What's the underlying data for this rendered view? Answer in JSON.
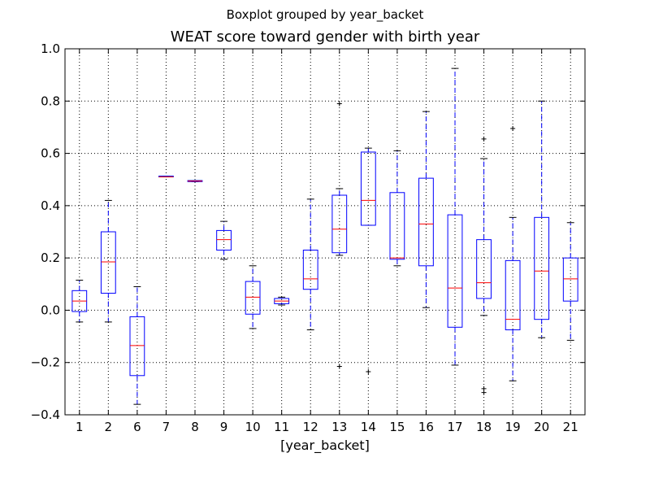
{
  "figure": {
    "suptitle": "Boxplot grouped by year_backet"
  },
  "chart_data": {
    "type": "boxplot",
    "title": "WEAT score toward gender with birth year",
    "xlabel": "[year_backet]",
    "ylabel": "",
    "ylim": [
      -0.4,
      1.0
    ],
    "yticks": [
      -0.4,
      -0.2,
      0.0,
      0.2,
      0.4,
      0.6,
      0.8,
      1.0
    ],
    "ytick_labels": [
      "−0.4",
      "−0.2",
      "0.0",
      "0.2",
      "0.4",
      "0.6",
      "0.8",
      "1.0"
    ],
    "grid": true,
    "categories": [
      "1",
      "2",
      "6",
      "7",
      "8",
      "9",
      "10",
      "11",
      "12",
      "13",
      "14",
      "15",
      "16",
      "17",
      "18",
      "19",
      "20",
      "21"
    ],
    "boxes": [
      {
        "label": "1",
        "whislo": -0.045,
        "q1": -0.005,
        "med": 0.035,
        "q3": 0.075,
        "whishi": 0.115,
        "fliers": []
      },
      {
        "label": "2",
        "whislo": -0.045,
        "q1": 0.065,
        "med": 0.185,
        "q3": 0.3,
        "whishi": 0.42,
        "fliers": []
      },
      {
        "label": "6",
        "whislo": -0.36,
        "q1": -0.25,
        "med": -0.135,
        "q3": -0.025,
        "whishi": 0.09,
        "fliers": []
      },
      {
        "label": "7",
        "whislo": 0.51,
        "q1": 0.51,
        "med": 0.51,
        "q3": 0.513,
        "whishi": 0.513,
        "fliers": []
      },
      {
        "label": "8",
        "whislo": 0.492,
        "q1": 0.492,
        "med": 0.494,
        "q3": 0.496,
        "whishi": 0.496,
        "fliers": []
      },
      {
        "label": "9",
        "whislo": 0.195,
        "q1": 0.23,
        "med": 0.27,
        "q3": 0.305,
        "whishi": 0.34,
        "fliers": []
      },
      {
        "label": "10",
        "whislo": -0.07,
        "q1": -0.015,
        "med": 0.05,
        "q3": 0.11,
        "whishi": 0.17,
        "fliers": []
      },
      {
        "label": "11",
        "whislo": 0.02,
        "q1": 0.025,
        "med": 0.035,
        "q3": 0.045,
        "whishi": 0.05,
        "fliers": []
      },
      {
        "label": "12",
        "whislo": -0.075,
        "q1": 0.08,
        "med": 0.12,
        "q3": 0.23,
        "whishi": 0.425,
        "fliers": []
      },
      {
        "label": "13",
        "whislo": 0.21,
        "q1": 0.22,
        "med": 0.31,
        "q3": 0.44,
        "whishi": 0.465,
        "fliers": [
          -0.215,
          0.79
        ]
      },
      {
        "label": "14",
        "whislo": 0.325,
        "q1": 0.325,
        "med": 0.42,
        "q3": 0.605,
        "whishi": 0.62,
        "fliers": [
          -0.235
        ]
      },
      {
        "label": "15",
        "whislo": 0.17,
        "q1": 0.195,
        "med": 0.2,
        "q3": 0.45,
        "whishi": 0.61,
        "fliers": []
      },
      {
        "label": "16",
        "whislo": 0.01,
        "q1": 0.17,
        "med": 0.33,
        "q3": 0.505,
        "whishi": 0.76,
        "fliers": []
      },
      {
        "label": "17",
        "whislo": -0.21,
        "q1": -0.065,
        "med": 0.085,
        "q3": 0.365,
        "whishi": 0.925,
        "fliers": []
      },
      {
        "label": "18",
        "whislo": -0.02,
        "q1": 0.045,
        "med": 0.105,
        "q3": 0.27,
        "whishi": 0.58,
        "fliers": [
          -0.315,
          -0.3,
          0.655
        ]
      },
      {
        "label": "19",
        "whislo": -0.27,
        "q1": -0.075,
        "med": -0.035,
        "q3": 0.19,
        "whishi": 0.355,
        "fliers": [
          0.695
        ]
      },
      {
        "label": "20",
        "whislo": -0.105,
        "q1": -0.035,
        "med": 0.15,
        "q3": 0.355,
        "whishi": 0.8,
        "fliers": []
      },
      {
        "label": "21",
        "whislo": -0.115,
        "q1": 0.035,
        "med": 0.12,
        "q3": 0.2,
        "whishi": 0.335,
        "fliers": []
      }
    ]
  },
  "colors": {
    "box": "#0000ff",
    "median": "#ff0000",
    "whisker": "#0000ff",
    "flier": "#000000",
    "grid": "#000000",
    "axes": "#000000"
  }
}
